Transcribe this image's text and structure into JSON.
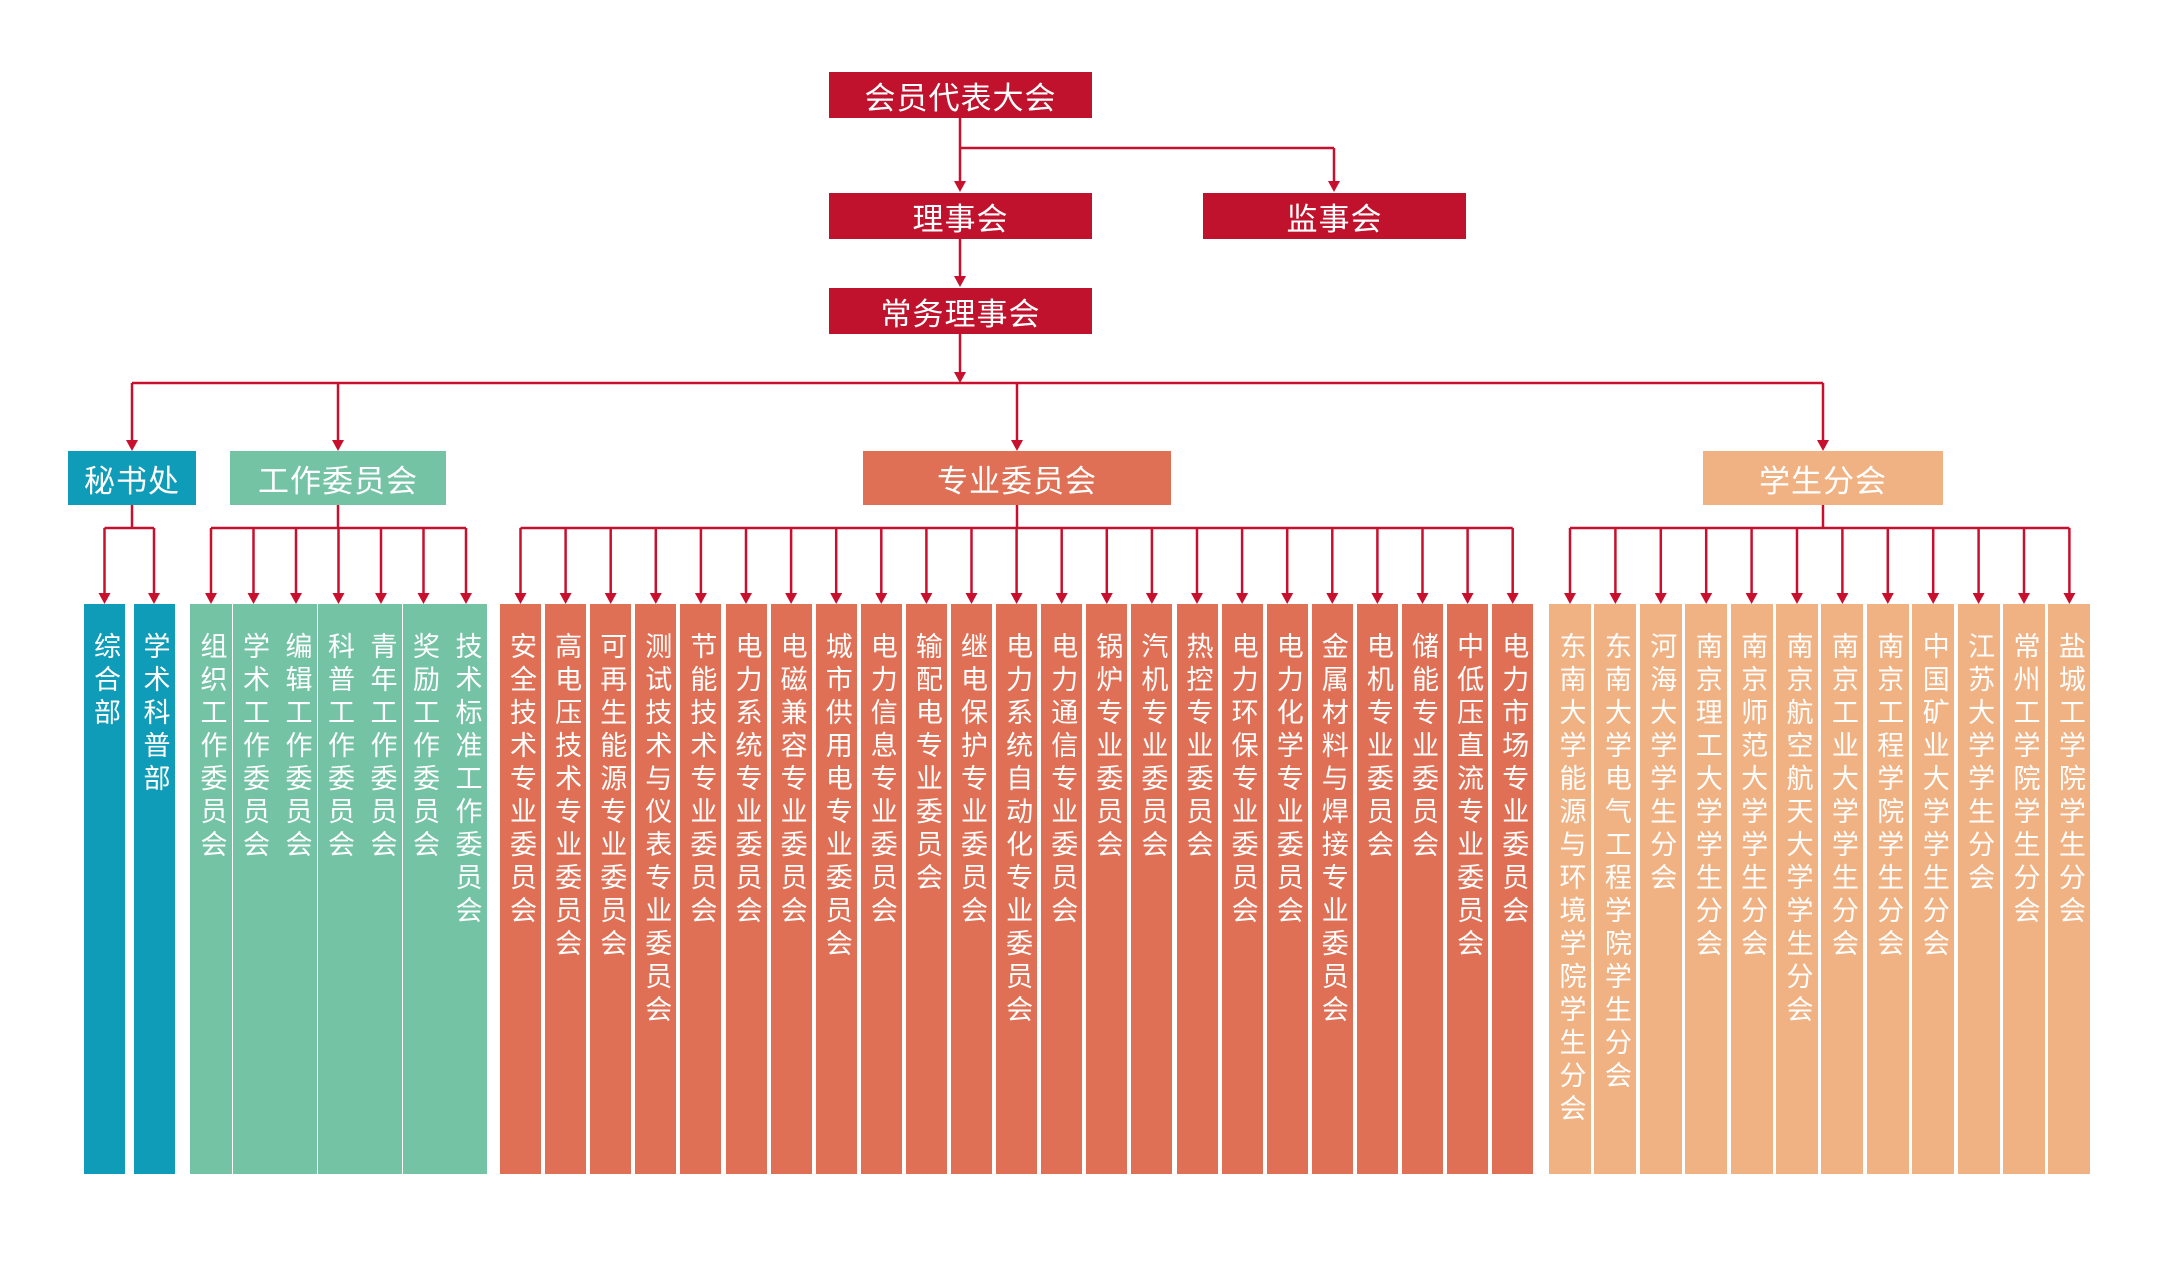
{
  "colors": {
    "red": "#C0122C",
    "blue": "#0E9CB8",
    "green": "#74C3A5",
    "orange": "#E07055",
    "peach": "#F0B283",
    "line": "#C8102E"
  },
  "nodes": {
    "congress": "会员代表大会",
    "council": "理事会",
    "supervisory": "监事会",
    "standing": "常务理事会"
  },
  "groups": [
    {
      "title": "秘书处",
      "color": "blue",
      "items": [
        "综合部",
        "学术科普部"
      ]
    },
    {
      "title": "工作委员会",
      "color": "green",
      "items": [
        "组织工作委员会",
        "学术工作委员会",
        "编辑工作委员会",
        "科普工作委员会",
        "青年工作委员会",
        "奖励工作委员会",
        "技术标准工作委员会"
      ]
    },
    {
      "title": "专业委员会",
      "color": "orange",
      "items": [
        "安全技术专业委员会",
        "高电压技术专业委员会",
        "可再生能源专业委员会",
        "测试技术与仪表专业委员会",
        "节能技术专业委员会",
        "电力系统专业委员会",
        "电磁兼容专业委员会",
        "城市供用电专业委员会",
        "电力信息专业委员会",
        "输配电专业委员会",
        "继电保护专业委员会",
        "电力系统自动化专业委员会",
        "电力通信专业委员会",
        "锅炉专业委员会",
        "汽机专业委员会",
        "热控专业委员会",
        "电力环保专业委员会",
        "电力化学专业委员会",
        "金属材料与焊接专业委员会",
        "电机专业委员会",
        "储能专业委员会",
        "中低压直流专业委员会",
        "电力市场专业委员会"
      ]
    },
    {
      "title": "学生分会",
      "color": "peach",
      "items": [
        "东南大学能源与环境学院学生分会",
        "东南大学电气工程学院学生分会",
        "河海大学学生分会",
        "南京理工大学学生分会",
        "南京师范大学学生分会",
        "南京航空航天大学学生分会",
        "南京工业大学学生分会",
        "南京工程学院学生分会",
        "中国矿业大学学生分会",
        "江苏大学学生分会",
        "常州工学院学生分会",
        "盐城工学院学生分会"
      ]
    }
  ]
}
